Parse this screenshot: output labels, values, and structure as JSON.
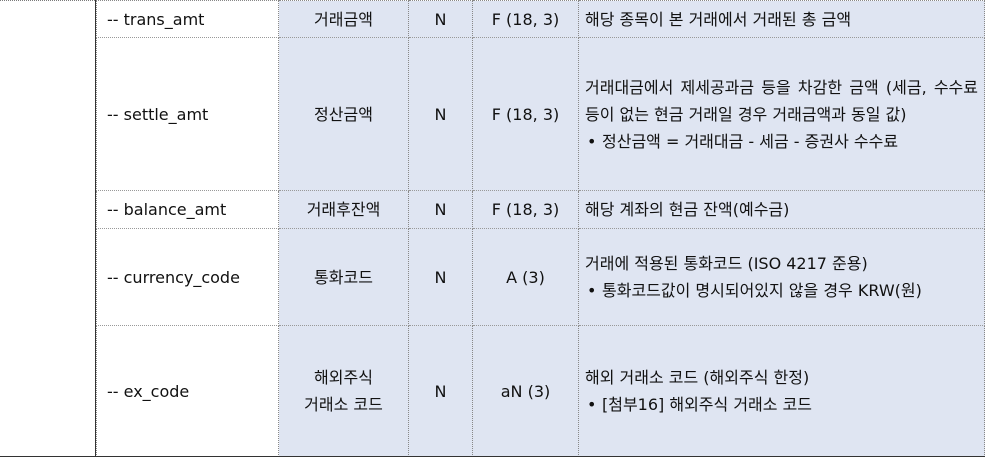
{
  "rows": [
    {
      "name": "-- trans_amt",
      "korean_name": [
        "거래금액"
      ],
      "required": "N",
      "type": "F (18, 3)",
      "description": [
        "해당 종목이 본 거래에서 거래된 총 금액"
      ],
      "bullets": []
    },
    {
      "name": "-- settle_amt",
      "korean_name": [
        "정산금액"
      ],
      "required": "N",
      "type": "F (18, 3)",
      "description": [
        "거래대금에서 제세공과금 등을 차감한 금액 (세금, 수수료 등이 없는 현금 거래일 경우 거래금액과 동일 값)"
      ],
      "bullets": [
        "정산금액 = 거래대금 - 세금 - 증권사 수수료"
      ]
    },
    {
      "name": "-- balance_amt",
      "korean_name": [
        "거래후잔액"
      ],
      "required": "N",
      "type": "F (18, 3)",
      "description": [
        "해당 계좌의 현금 잔액(예수금)"
      ],
      "bullets": []
    },
    {
      "name": "-- currency_code",
      "korean_name": [
        "통화코드"
      ],
      "required": "N",
      "type": "A (3)",
      "description": [
        "거래에 적용된 통화코드 (ISO 4217 준용)"
      ],
      "bullets": [
        "통화코드값이 명시되어있지 않을 경우 KRW(원)"
      ]
    },
    {
      "name": "-- ex_code",
      "korean_name": [
        "해외주식",
        "거래소 코드"
      ],
      "required": "N",
      "type": "aN (3)",
      "description": [
        "해외 거래소 코드 (해외주식 한정)"
      ],
      "bullets": [
        "[첨부16] 해외주식 거래소 코드"
      ]
    }
  ],
  "bullet_symbol": "•"
}
